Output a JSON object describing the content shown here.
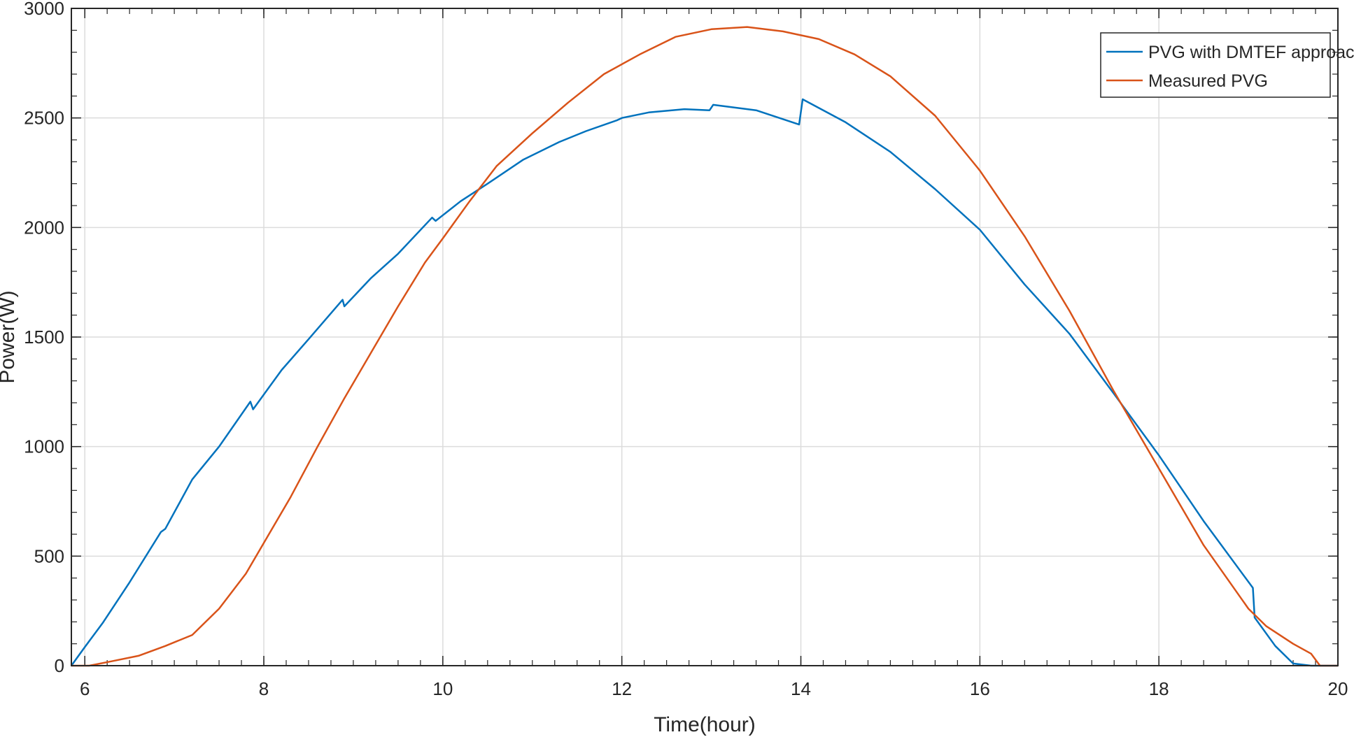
{
  "chart_data": {
    "type": "line",
    "title": "",
    "xlabel": "Time(hour)",
    "ylabel": "Power(W)",
    "xlim": [
      5.85,
      20
    ],
    "ylim": [
      0,
      3000
    ],
    "xticks": [
      6,
      8,
      10,
      12,
      14,
      16,
      18,
      20
    ],
    "yticks": [
      0,
      500,
      1000,
      1500,
      2000,
      2500,
      3000
    ],
    "grid": true,
    "legend_position": "top-right",
    "series": [
      {
        "name": "PVG with DMTEF approach",
        "color": "#0072bd",
        "points": [
          [
            5.85,
            0
          ],
          [
            6.0,
            85
          ],
          [
            6.2,
            195
          ],
          [
            6.5,
            380
          ],
          [
            6.85,
            610
          ],
          [
            6.9,
            625
          ],
          [
            7.2,
            850
          ],
          [
            7.5,
            1000
          ],
          [
            7.85,
            1205
          ],
          [
            7.88,
            1170
          ],
          [
            8.2,
            1350
          ],
          [
            8.5,
            1490
          ],
          [
            8.88,
            1670
          ],
          [
            8.9,
            1640
          ],
          [
            9.2,
            1770
          ],
          [
            9.5,
            1880
          ],
          [
            9.88,
            2045
          ],
          [
            9.92,
            2030
          ],
          [
            10.2,
            2120
          ],
          [
            10.5,
            2200
          ],
          [
            10.9,
            2310
          ],
          [
            10.95,
            2320
          ],
          [
            11.3,
            2390
          ],
          [
            11.6,
            2440
          ],
          [
            11.95,
            2490
          ],
          [
            12.0,
            2500
          ],
          [
            12.3,
            2525
          ],
          [
            12.7,
            2540
          ],
          [
            12.98,
            2535
          ],
          [
            13.02,
            2560
          ],
          [
            13.5,
            2535
          ],
          [
            13.98,
            2470
          ],
          [
            14.02,
            2585
          ],
          [
            14.5,
            2480
          ],
          [
            15.0,
            2345
          ],
          [
            15.5,
            2175
          ],
          [
            16.0,
            1990
          ],
          [
            16.5,
            1740
          ],
          [
            17.0,
            1515
          ],
          [
            17.5,
            1240
          ],
          [
            18.0,
            960
          ],
          [
            18.5,
            660
          ],
          [
            19.05,
            355
          ],
          [
            19.07,
            220
          ],
          [
            19.3,
            90
          ],
          [
            19.5,
            10
          ],
          [
            19.7,
            0
          ],
          [
            20.0,
            0
          ]
        ]
      },
      {
        "name": "Measured PVG",
        "color": "#d95319",
        "points": [
          [
            5.85,
            0
          ],
          [
            6.05,
            0
          ],
          [
            6.3,
            20
          ],
          [
            6.6,
            45
          ],
          [
            6.9,
            90
          ],
          [
            7.2,
            140
          ],
          [
            7.5,
            260
          ],
          [
            7.8,
            420
          ],
          [
            8.0,
            560
          ],
          [
            8.3,
            770
          ],
          [
            8.6,
            1000
          ],
          [
            8.9,
            1220
          ],
          [
            9.2,
            1430
          ],
          [
            9.5,
            1640
          ],
          [
            9.8,
            1840
          ],
          [
            10.0,
            1950
          ],
          [
            10.3,
            2120
          ],
          [
            10.6,
            2280
          ],
          [
            11.0,
            2430
          ],
          [
            11.4,
            2570
          ],
          [
            11.8,
            2700
          ],
          [
            12.2,
            2790
          ],
          [
            12.6,
            2870
          ],
          [
            13.0,
            2905
          ],
          [
            13.4,
            2915
          ],
          [
            13.8,
            2895
          ],
          [
            14.2,
            2860
          ],
          [
            14.6,
            2790
          ],
          [
            15.0,
            2690
          ],
          [
            15.5,
            2510
          ],
          [
            16.0,
            2260
          ],
          [
            16.5,
            1960
          ],
          [
            17.0,
            1620
          ],
          [
            17.5,
            1250
          ],
          [
            18.0,
            900
          ],
          [
            18.5,
            550
          ],
          [
            19.0,
            260
          ],
          [
            19.2,
            180
          ],
          [
            19.5,
            100
          ],
          [
            19.7,
            55
          ],
          [
            19.8,
            0
          ],
          [
            20.0,
            0
          ]
        ]
      }
    ]
  }
}
